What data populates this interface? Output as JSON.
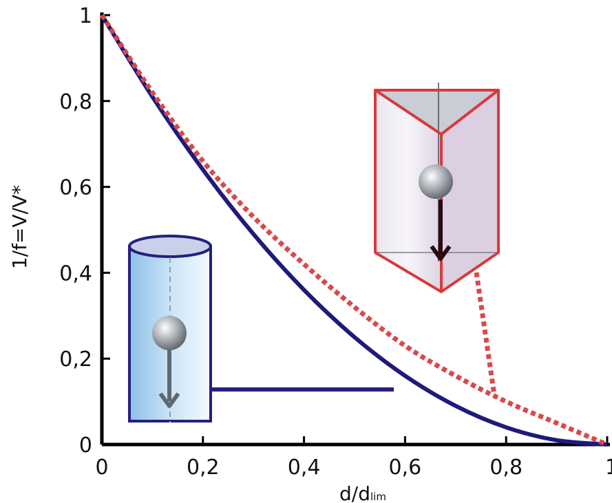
{
  "chart_data": {
    "type": "line",
    "xlabel": "d/d",
    "xlabel_subscript": "lim",
    "ylabel": "1/f=V/V*",
    "xlim": [
      0,
      1
    ],
    "ylim": [
      0,
      1
    ],
    "x_ticks": [
      "0",
      "0,2",
      "0,4",
      "0,6",
      "0,8",
      "1"
    ],
    "y_ticks": [
      "0",
      "0,2",
      "0,4",
      "0,6",
      "0,8",
      "1"
    ],
    "grid": false,
    "series": [
      {
        "style": "solid",
        "color": "#1f1a7a",
        "x": [
          0,
          0.1,
          0.2,
          0.3,
          0.4,
          0.5,
          0.6,
          0.7,
          0.8,
          0.9,
          1.0
        ],
        "y": [
          1.0,
          0.81,
          0.64,
          0.49,
          0.36,
          0.25,
          0.16,
          0.09,
          0.04,
          0.01,
          0.0
        ]
      },
      {
        "style": "dotted",
        "color": "#d9494a",
        "x": [
          0,
          0.1,
          0.2,
          0.3,
          0.4,
          0.5,
          0.6,
          0.7,
          0.8,
          0.9,
          1.0
        ],
        "y": [
          1.0,
          0.82,
          0.66,
          0.53,
          0.42,
          0.32,
          0.23,
          0.16,
          0.1,
          0.05,
          0.0
        ]
      }
    ],
    "insets": [
      {
        "shape": "cylinder",
        "color": "#1f1a7a",
        "points_to_series": 0
      },
      {
        "shape": "triangular-prism",
        "color": "#d9494a",
        "points_to_series": 1
      }
    ]
  }
}
